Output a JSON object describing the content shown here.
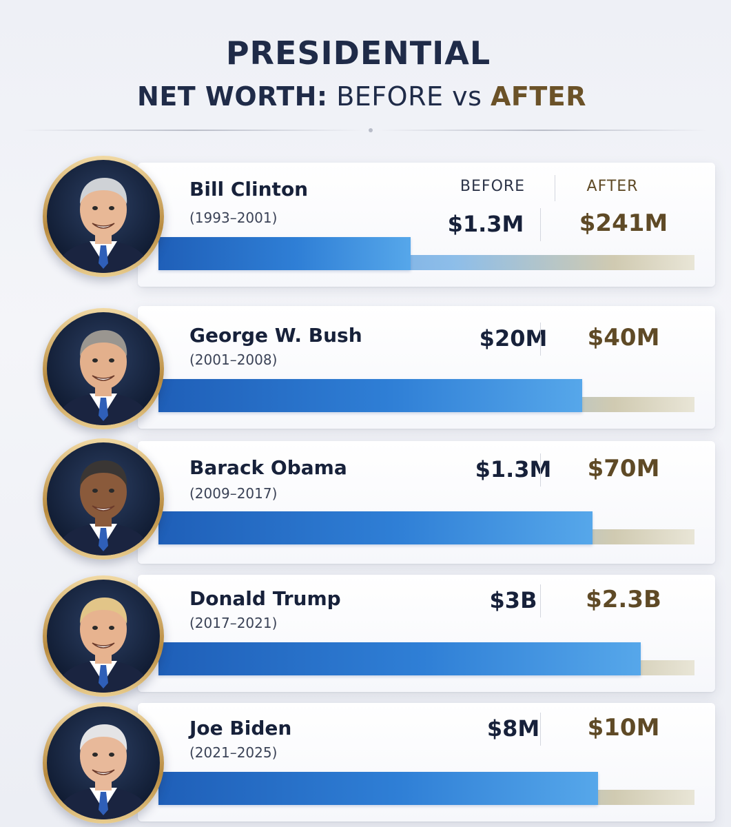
{
  "header": {
    "title_line1": "PRESIDENTIAL",
    "title_bold": "NET WORTH:",
    "title_before": "BEFORE",
    "title_vs": "vs",
    "title_after": "AFTER"
  },
  "columns": {
    "before": "BEFORE",
    "after": "AFTER"
  },
  "chart_data": {
    "type": "bar",
    "title": "PRESIDENTIAL NET WORTH: BEFORE vs AFTER",
    "categories": [
      "Bill Clinton",
      "George W. Bush",
      "Barack Obama",
      "Donald Trump",
      "Joe Biden"
    ],
    "terms": [
      "(1993–2001)",
      "(2001–2008)",
      "(2009–2017)",
      "(2017–2021)",
      "(2021–2025)"
    ],
    "series": [
      {
        "name": "BEFORE",
        "values": [
          1300000,
          20000000,
          1300000,
          3000000000,
          8000000
        ],
        "labels": [
          "$1.3M",
          "$20M",
          "$1.3M",
          "$3B",
          "$8M"
        ]
      },
      {
        "name": "AFTER",
        "values": [
          241000000,
          40000000,
          70000000,
          2300000000,
          10000000
        ],
        "labels": [
          "$241M",
          "$40M",
          "$70M",
          "$2.3B",
          "$10M"
        ]
      }
    ],
    "bar_before_fill": [
      0.47,
      0.79,
      0.81,
      0.9,
      0.82
    ],
    "colors": {
      "before": "#2f7fd6",
      "after": "#d9d2b6",
      "after_text": "#5f4a26",
      "title": "#1f2b48"
    }
  }
}
